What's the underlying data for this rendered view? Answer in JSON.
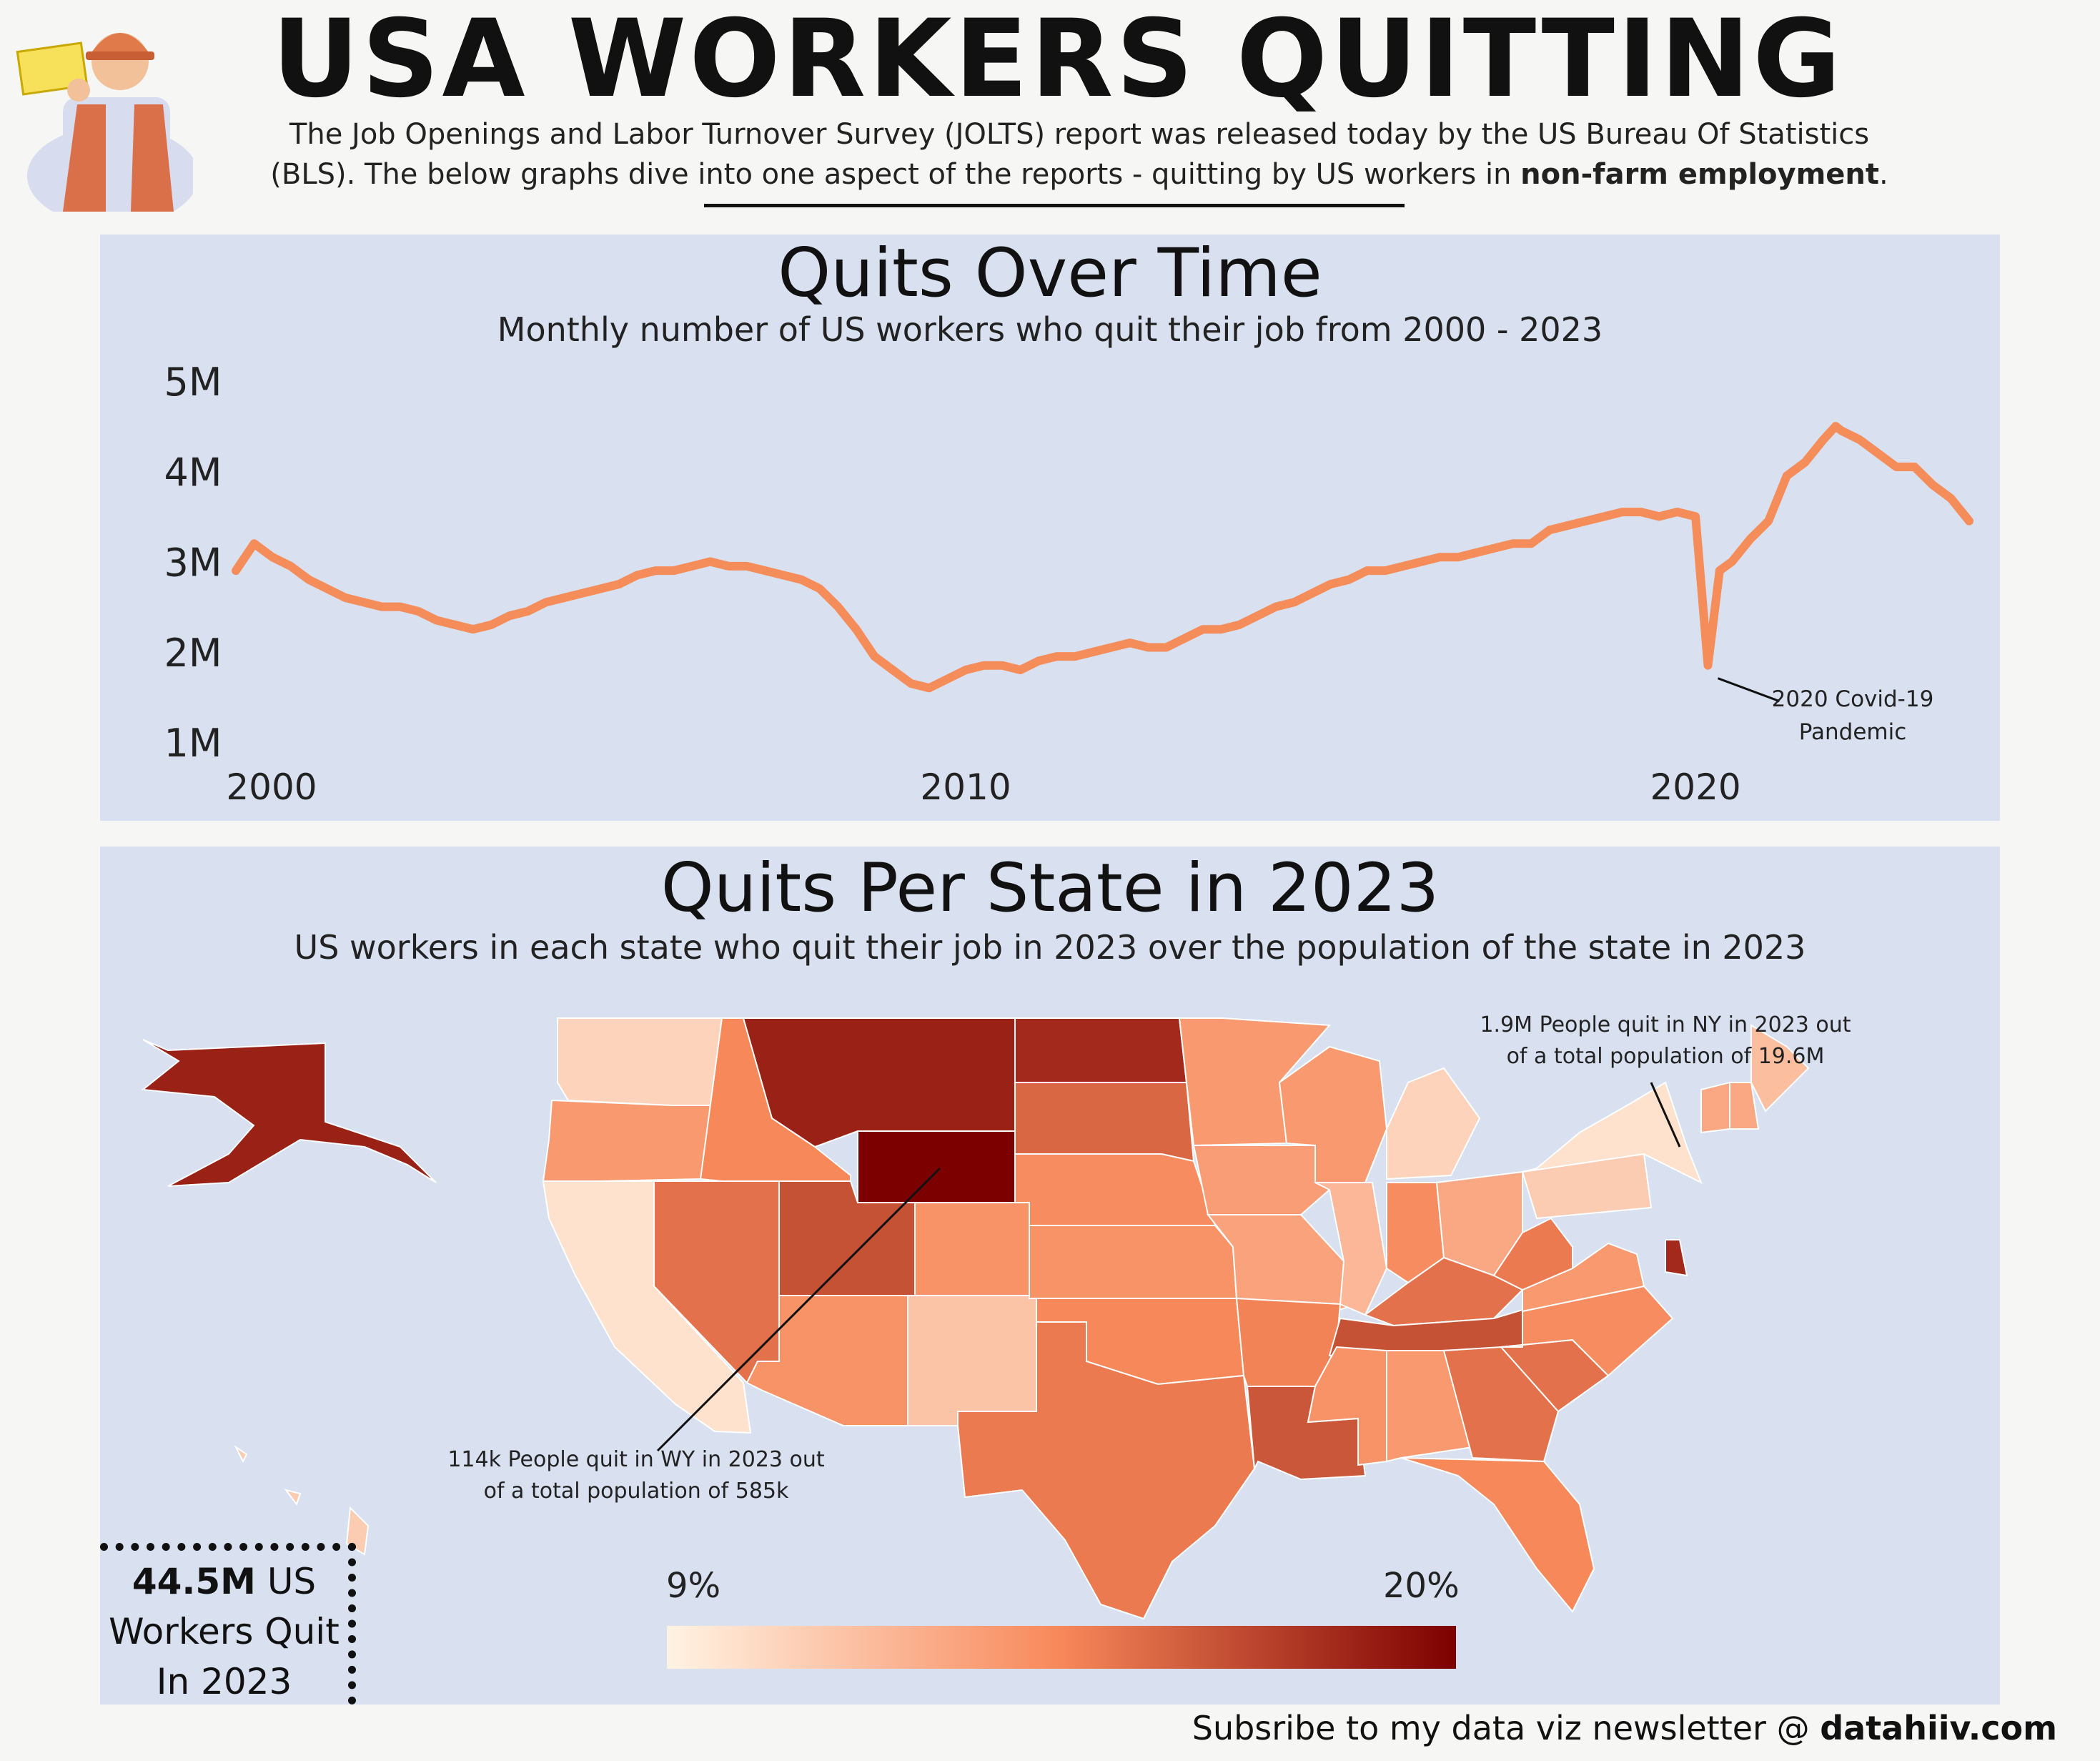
{
  "header": {
    "title": "USA WORKERS QUITTING",
    "intro_line1": "The Job Openings and Labor Turnover Survey (JOLTS) report was released today by the US Bureau Of Statistics",
    "intro_line2_pre": "(BLS).  The below graphs dive into one aspect of the reports - quitting by US workers in ",
    "intro_line2_bold": "non-farm employment",
    "intro_line2_post": "."
  },
  "icons": {
    "worker": "construction-worker-illustration"
  },
  "colors": {
    "panel": "#d9e1f1",
    "line": "#f58d5a",
    "scale_low": "#fff3e4",
    "scale_mid": "#f7885a",
    "scale_high": "#7d0000"
  },
  "chart_data": [
    {
      "type": "line",
      "title": "Quits Over Time",
      "subtitle": "Monthly number of US workers who quit their job from 2000 - 2023",
      "xlabel": "",
      "ylabel": "",
      "ylim": [
        1,
        5
      ],
      "y_ticks": [
        "5M",
        "4M",
        "3M",
        "2M",
        "1M"
      ],
      "x_ticks": [
        "2000",
        "2010",
        "2020"
      ],
      "grid": false,
      "x": [
        2000.0,
        2000.25,
        2000.5,
        2000.75,
        2001.0,
        2001.25,
        2001.5,
        2001.75,
        2002.0,
        2002.25,
        2002.5,
        2002.75,
        2003.0,
        2003.25,
        2003.5,
        2003.75,
        2004.0,
        2004.25,
        2004.5,
        2004.75,
        2005.0,
        2005.25,
        2005.5,
        2005.75,
        2006.0,
        2006.25,
        2006.5,
        2006.75,
        2007.0,
        2007.25,
        2007.5,
        2007.75,
        2008.0,
        2008.25,
        2008.5,
        2008.75,
        2009.0,
        2009.25,
        2009.5,
        2009.75,
        2010.0,
        2010.25,
        2010.5,
        2010.75,
        2011.0,
        2011.25,
        2011.5,
        2011.75,
        2012.0,
        2012.25,
        2012.5,
        2012.75,
        2013.0,
        2013.25,
        2013.5,
        2013.75,
        2014.0,
        2014.25,
        2014.5,
        2014.75,
        2015.0,
        2015.25,
        2015.5,
        2015.75,
        2016.0,
        2016.25,
        2016.5,
        2016.75,
        2017.0,
        2017.25,
        2017.5,
        2017.75,
        2018.0,
        2018.25,
        2018.5,
        2018.75,
        2019.0,
        2019.25,
        2019.5,
        2019.75,
        2020.0,
        2020.17,
        2020.33,
        2020.5,
        2020.75,
        2021.0,
        2021.25,
        2021.5,
        2021.75,
        2021.92,
        2022.0,
        2022.25,
        2022.5,
        2022.75,
        2023.0,
        2023.25,
        2023.5,
        2023.75
      ],
      "series": [
        {
          "values": [
            2.9,
            3.2,
            3.05,
            2.95,
            2.8,
            2.7,
            2.6,
            2.55,
            2.5,
            2.5,
            2.45,
            2.35,
            2.3,
            2.25,
            2.3,
            2.4,
            2.45,
            2.55,
            2.6,
            2.65,
            2.7,
            2.75,
            2.85,
            2.9,
            2.9,
            2.95,
            3.0,
            2.95,
            2.95,
            2.9,
            2.85,
            2.8,
            2.7,
            2.5,
            2.25,
            1.95,
            1.8,
            1.65,
            1.6,
            1.7,
            1.8,
            1.85,
            1.85,
            1.8,
            1.9,
            1.95,
            1.95,
            2.0,
            2.05,
            2.1,
            2.05,
            2.05,
            2.15,
            2.25,
            2.25,
            2.3,
            2.4,
            2.5,
            2.55,
            2.65,
            2.75,
            2.8,
            2.9,
            2.9,
            2.95,
            3.0,
            3.05,
            3.05,
            3.1,
            3.15,
            3.2,
            3.2,
            3.35,
            3.4,
            3.45,
            3.5,
            3.55,
            3.55,
            3.5,
            3.55,
            3.5,
            1.85,
            2.9,
            3.0,
            3.25,
            3.45,
            3.95,
            4.1,
            4.35,
            4.5,
            4.45,
            4.35,
            4.2,
            4.05,
            4.05,
            3.85,
            3.7,
            3.45
          ]
        }
      ],
      "annotations": [
        "2020 Covid-19",
        "Pandemic"
      ]
    },
    {
      "type": "heatmap",
      "title": "Quits Per State in 2023",
      "subtitle": "US workers in each state who quit their job in 2023 over the population of the state in 2023",
      "scale_min_label": "9%",
      "scale_max_label": "20%",
      "states": [
        {
          "state": "WA",
          "level": 0.15
        },
        {
          "state": "OR",
          "level": 0.42
        },
        {
          "state": "CA",
          "level": 0.08
        },
        {
          "state": "ID",
          "level": 0.5
        },
        {
          "state": "NV",
          "level": 0.58
        },
        {
          "state": "MT",
          "level": 0.88
        },
        {
          "state": "WY",
          "level": 1.0
        },
        {
          "state": "UT",
          "level": 0.7
        },
        {
          "state": "AZ",
          "level": 0.45
        },
        {
          "state": "CO",
          "level": 0.45
        },
        {
          "state": "NM",
          "level": 0.22
        },
        {
          "state": "ND",
          "level": 0.85
        },
        {
          "state": "SD",
          "level": 0.62
        },
        {
          "state": "NE",
          "level": 0.48
        },
        {
          "state": "KS",
          "level": 0.45
        },
        {
          "state": "OK",
          "level": 0.5
        },
        {
          "state": "TX",
          "level": 0.55
        },
        {
          "state": "MN",
          "level": 0.42
        },
        {
          "state": "IA",
          "level": 0.4
        },
        {
          "state": "MO",
          "level": 0.38
        },
        {
          "state": "AR",
          "level": 0.52
        },
        {
          "state": "LA",
          "level": 0.68
        },
        {
          "state": "WI",
          "level": 0.42
        },
        {
          "state": "IL",
          "level": 0.28
        },
        {
          "state": "MI",
          "level": 0.15
        },
        {
          "state": "IN",
          "level": 0.48
        },
        {
          "state": "OH",
          "level": 0.35
        },
        {
          "state": "KY",
          "level": 0.58
        },
        {
          "state": "TN",
          "level": 0.7
        },
        {
          "state": "MS",
          "level": 0.45
        },
        {
          "state": "AL",
          "level": 0.42
        },
        {
          "state": "GA",
          "level": 0.58
        },
        {
          "state": "FL",
          "level": 0.5
        },
        {
          "state": "SC",
          "level": 0.58
        },
        {
          "state": "NC",
          "level": 0.48
        },
        {
          "state": "VA",
          "level": 0.42
        },
        {
          "state": "WV",
          "level": 0.55
        },
        {
          "state": "PA",
          "level": 0.18
        },
        {
          "state": "NY",
          "level": 0.08
        },
        {
          "state": "ME",
          "level": 0.25
        },
        {
          "state": "VT",
          "level": 0.35
        },
        {
          "state": "NH",
          "level": 0.35
        },
        {
          "state": "DE",
          "level": 0.85
        },
        {
          "state": "AK",
          "level": 0.88
        },
        {
          "state": "HI",
          "level": 0.18
        }
      ],
      "callouts": {
        "ny_line1": "1.9M People quit in NY in 2023 out",
        "ny_line2": "of a total population of  19.6M",
        "wy_line1": "114k People quit in WY in 2023 out",
        "wy_line2": "of a total population of  585k"
      }
    }
  ],
  "total_box": {
    "bold": "44.5M",
    "rest1": " US",
    "line2": "Workers Quit",
    "line3": "In 2023"
  },
  "footer": {
    "text": "Subsribe to my data viz newsletter @ ",
    "bold": "datahiiv.com"
  }
}
